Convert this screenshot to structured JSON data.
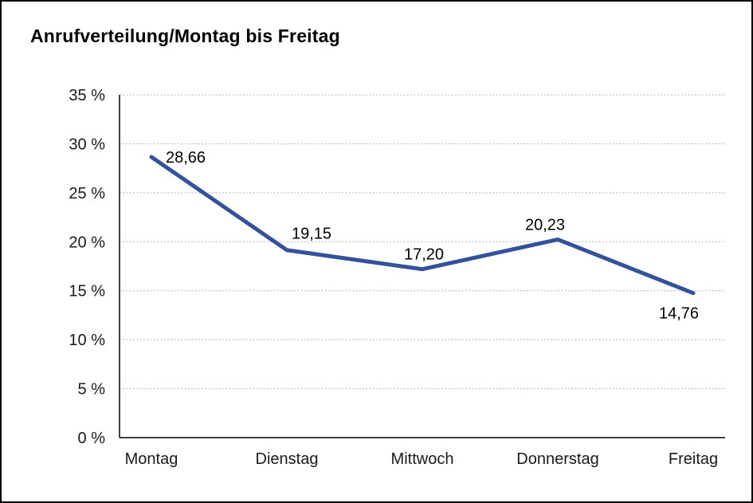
{
  "chart_data": {
    "type": "line",
    "title": "Anrufverteilung/Montag bis Freitag",
    "categories": [
      "Montag",
      "Dienstag",
      "Mittwoch",
      "Donnerstag",
      "Freitag"
    ],
    "values": [
      28.66,
      19.15,
      17.2,
      20.23,
      14.76
    ],
    "value_labels": [
      "28,66",
      "19,15",
      "17,20",
      "20,23",
      "14,76"
    ],
    "xlabel": "",
    "ylabel": "",
    "ylim": [
      0,
      35
    ],
    "ytick_step": 5,
    "ytick_suffix": " %",
    "grid": "dotted-horizontal",
    "legend": "none",
    "line_color": "#34519C",
    "axis_color": "#000000",
    "gridline_color": "#9a9a9a",
    "background_color": "#ffffff",
    "border_color": "#000000",
    "label_offsets": [
      [
        18,
        7,
        "start"
      ],
      [
        6,
        -14,
        "start"
      ],
      [
        2,
        -12,
        "middle"
      ],
      [
        -16,
        -12,
        "middle"
      ],
      [
        -18,
        32,
        "middle"
      ]
    ]
  }
}
